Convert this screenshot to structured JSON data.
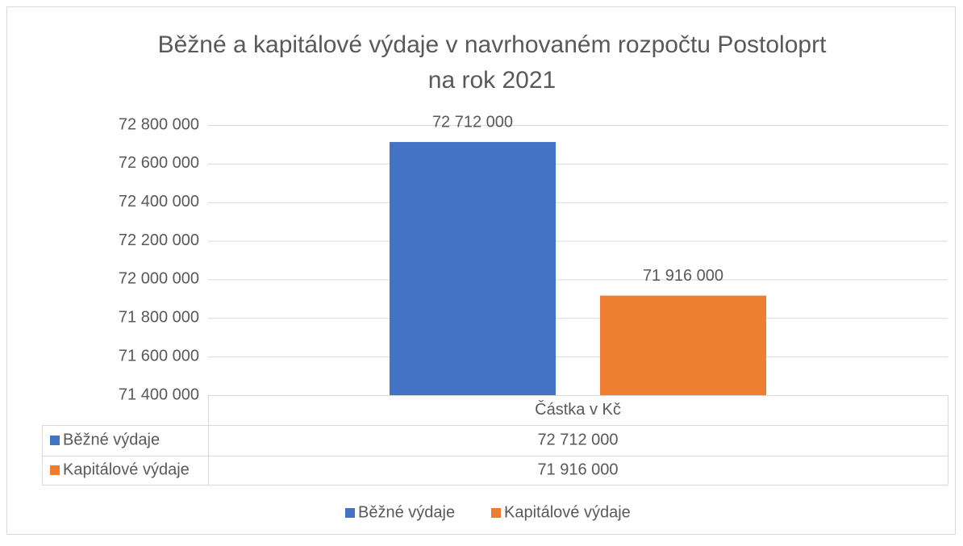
{
  "chart_data": {
    "type": "bar",
    "title": [
      "Běžné a kapitálové výdaje v navrhovaném rozpočtu Postoloprt",
      "na rok 2021"
    ],
    "categories": [
      "Částka v Kč"
    ],
    "series": [
      {
        "name": "Běžné výdaje",
        "color": "#4472c4",
        "values": [
          72712000
        ],
        "value_labels": [
          "72 712 000"
        ]
      },
      {
        "name": "Kapitálové výdaje",
        "color": "#ed7d31",
        "values": [
          71916000
        ],
        "value_labels": [
          "71 916 000"
        ]
      }
    ],
    "ylim": [
      71400000,
      72800000
    ],
    "yticks": [
      {
        "value": 71400000,
        "label": "71 400 000"
      },
      {
        "value": 71600000,
        "label": "71 600 000"
      },
      {
        "value": 71800000,
        "label": "71 800 000"
      },
      {
        "value": 72000000,
        "label": "72 000 000"
      },
      {
        "value": 72200000,
        "label": "72 200 000"
      },
      {
        "value": 72400000,
        "label": "72 400 000"
      },
      {
        "value": 72600000,
        "label": "72 600 000"
      },
      {
        "value": 72800000,
        "label": "72 800 000"
      }
    ],
    "grid": true,
    "data_table": true,
    "legend": "bottom"
  }
}
